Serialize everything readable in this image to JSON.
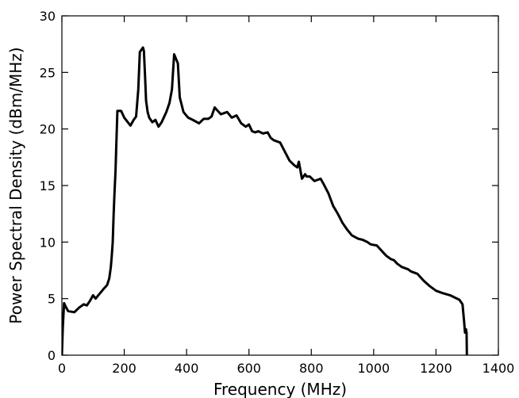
{
  "chart_data": {
    "type": "line",
    "title": "",
    "xlabel": "Frequency (MHz)",
    "ylabel": "Power Spectral Density (dBm/MHz)",
    "xlim": [
      0,
      1400
    ],
    "ylim": [
      0,
      30
    ],
    "xticks": [
      0,
      200,
      400,
      600,
      800,
      1000,
      1200,
      1400
    ],
    "yticks": [
      0,
      5,
      10,
      15,
      20,
      25,
      30
    ],
    "grid": false,
    "legend": "none",
    "series_color": "#000000",
    "series": [
      {
        "x": [
          0,
          3,
          7,
          12,
          20,
          40,
          55,
          70,
          80,
          90,
          100,
          108,
          120,
          135,
          145,
          152,
          157,
          160,
          163,
          166,
          169,
          172,
          175,
          178,
          185,
          190,
          200,
          220,
          230,
          238,
          245,
          250,
          255,
          260,
          263,
          267,
          270,
          275,
          280,
          290,
          300,
          310,
          320,
          335,
          345,
          353,
          360,
          366,
          372,
          378,
          390,
          405,
          420,
          440,
          455,
          470,
          480,
          490,
          500,
          510,
          520,
          530,
          545,
          560,
          575,
          590,
          600,
          610,
          620,
          630,
          645,
          660,
          670,
          680,
          700,
          715,
          730,
          745,
          755,
          760,
          770,
          780,
          785,
          795,
          810,
          820,
          830,
          840,
          855,
          870,
          885,
          900,
          915,
          930,
          950,
          965,
          980,
          990,
          1010,
          1020,
          1040,
          1055,
          1065,
          1075,
          1090,
          1110,
          1120,
          1140,
          1160,
          1180,
          1200,
          1220,
          1245,
          1260,
          1275,
          1285,
          1290,
          1293,
          1296,
          1298,
          1299,
          1300
        ],
        "y": [
          0,
          2.5,
          4.6,
          4.3,
          3.9,
          3.8,
          4.2,
          4.5,
          4.4,
          4.8,
          5.3,
          5.0,
          5.4,
          5.9,
          6.2,
          6.8,
          7.8,
          8.8,
          10.0,
          12.5,
          14.5,
          16.3,
          19.0,
          21.6,
          21.6,
          21.6,
          21.0,
          20.3,
          20.8,
          21.1,
          23.5,
          26.8,
          27.0,
          27.2,
          26.9,
          24.5,
          22.5,
          21.5,
          21.0,
          20.6,
          20.8,
          20.2,
          20.6,
          21.5,
          22.3,
          23.5,
          26.6,
          26.2,
          25.8,
          22.8,
          21.5,
          21.0,
          20.8,
          20.5,
          20.9,
          20.9,
          21.1,
          21.9,
          21.6,
          21.3,
          21.4,
          21.5,
          21.0,
          21.2,
          20.5,
          20.2,
          20.4,
          19.8,
          19.7,
          19.8,
          19.6,
          19.7,
          19.2,
          19.0,
          18.8,
          18.0,
          17.2,
          16.8,
          16.6,
          17.1,
          15.6,
          16.0,
          15.8,
          15.8,
          15.4,
          15.5,
          15.6,
          15.1,
          14.3,
          13.2,
          12.5,
          11.7,
          11.1,
          10.6,
          10.3,
          10.2,
          10.0,
          9.8,
          9.7,
          9.4,
          8.8,
          8.5,
          8.4,
          8.1,
          7.8,
          7.6,
          7.4,
          7.2,
          6.6,
          6.1,
          5.7,
          5.5,
          5.3,
          5.1,
          4.9,
          4.5,
          3.0,
          2.0,
          2.3,
          2.0,
          0.0,
          -0.2
        ]
      }
    ]
  }
}
